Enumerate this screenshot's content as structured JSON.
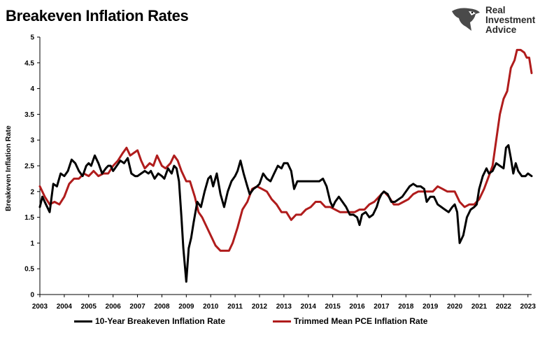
{
  "header": {
    "title": "Breakeven Inflation Rates"
  },
  "logo": {
    "line1": "Real",
    "line2": "Investment",
    "line3": "Advice",
    "icon": "eagle-icon"
  },
  "chart_data": {
    "type": "line",
    "title": "Breakeven Inflation Rates",
    "xlabel": "",
    "ylabel": "Breakeven Inflation Rate",
    "xlim": [
      2003,
      2023.15
    ],
    "ylim": [
      0,
      5
    ],
    "grid": false,
    "legend_position": "bottom",
    "x_ticks": [
      "2003",
      "2004",
      "2005",
      "2006",
      "2007",
      "2008",
      "2009",
      "2010",
      "2011",
      "2012",
      "2013",
      "2014",
      "2015",
      "2016",
      "2017",
      "2018",
      "2019",
      "2020",
      "2021",
      "2022",
      "2023"
    ],
    "y_ticks": [
      "0",
      "0.5",
      "1",
      "1.5",
      "2",
      "2.5",
      "3",
      "3.5",
      "4",
      "4.5",
      "5"
    ],
    "series": [
      {
        "name": "10-Year Breakeven Inflation Rate",
        "color": "#000000",
        "points": [
          [
            2003.0,
            1.7
          ],
          [
            2003.1,
            1.9
          ],
          [
            2003.25,
            1.75
          ],
          [
            2003.4,
            1.6
          ],
          [
            2003.55,
            2.15
          ],
          [
            2003.7,
            2.1
          ],
          [
            2003.85,
            2.35
          ],
          [
            2004.0,
            2.3
          ],
          [
            2004.15,
            2.4
          ],
          [
            2004.3,
            2.62
          ],
          [
            2004.45,
            2.55
          ],
          [
            2004.6,
            2.4
          ],
          [
            2004.75,
            2.3
          ],
          [
            2004.9,
            2.5
          ],
          [
            2005.0,
            2.55
          ],
          [
            2005.1,
            2.5
          ],
          [
            2005.25,
            2.7
          ],
          [
            2005.4,
            2.55
          ],
          [
            2005.55,
            2.35
          ],
          [
            2005.7,
            2.45
          ],
          [
            2005.8,
            2.5
          ],
          [
            2005.9,
            2.5
          ],
          [
            2006.0,
            2.4
          ],
          [
            2006.15,
            2.5
          ],
          [
            2006.3,
            2.6
          ],
          [
            2006.45,
            2.55
          ],
          [
            2006.6,
            2.65
          ],
          [
            2006.75,
            2.35
          ],
          [
            2006.9,
            2.3
          ],
          [
            2007.0,
            2.3
          ],
          [
            2007.15,
            2.35
          ],
          [
            2007.3,
            2.4
          ],
          [
            2007.45,
            2.35
          ],
          [
            2007.55,
            2.4
          ],
          [
            2007.7,
            2.25
          ],
          [
            2007.85,
            2.35
          ],
          [
            2008.0,
            2.3
          ],
          [
            2008.1,
            2.25
          ],
          [
            2008.25,
            2.45
          ],
          [
            2008.4,
            2.35
          ],
          [
            2008.5,
            2.5
          ],
          [
            2008.6,
            2.45
          ],
          [
            2008.7,
            2.2
          ],
          [
            2008.8,
            1.5
          ],
          [
            2008.88,
            0.9
          ],
          [
            2009.0,
            0.25
          ],
          [
            2009.1,
            0.9
          ],
          [
            2009.2,
            1.1
          ],
          [
            2009.3,
            1.4
          ],
          [
            2009.45,
            1.8
          ],
          [
            2009.6,
            1.7
          ],
          [
            2009.75,
            2.0
          ],
          [
            2009.9,
            2.25
          ],
          [
            2010.0,
            2.3
          ],
          [
            2010.1,
            2.1
          ],
          [
            2010.25,
            2.35
          ],
          [
            2010.4,
            1.95
          ],
          [
            2010.55,
            1.7
          ],
          [
            2010.7,
            2.0
          ],
          [
            2010.85,
            2.2
          ],
          [
            2011.0,
            2.3
          ],
          [
            2011.1,
            2.4
          ],
          [
            2011.22,
            2.6
          ],
          [
            2011.35,
            2.35
          ],
          [
            2011.5,
            2.1
          ],
          [
            2011.6,
            1.95
          ],
          [
            2011.75,
            2.05
          ],
          [
            2011.9,
            2.1
          ],
          [
            2012.0,
            2.15
          ],
          [
            2012.15,
            2.35
          ],
          [
            2012.3,
            2.25
          ],
          [
            2012.45,
            2.2
          ],
          [
            2012.6,
            2.35
          ],
          [
            2012.75,
            2.5
          ],
          [
            2012.9,
            2.45
          ],
          [
            2013.0,
            2.55
          ],
          [
            2013.15,
            2.55
          ],
          [
            2013.3,
            2.4
          ],
          [
            2013.42,
            2.05
          ],
          [
            2013.55,
            2.2
          ],
          [
            2013.7,
            2.2
          ],
          [
            2013.85,
            2.2
          ],
          [
            2014.0,
            2.2
          ],
          [
            2014.15,
            2.2
          ],
          [
            2014.3,
            2.2
          ],
          [
            2014.45,
            2.2
          ],
          [
            2014.6,
            2.25
          ],
          [
            2014.75,
            2.1
          ],
          [
            2014.9,
            1.8
          ],
          [
            2015.0,
            1.7
          ],
          [
            2015.1,
            1.8
          ],
          [
            2015.25,
            1.9
          ],
          [
            2015.4,
            1.8
          ],
          [
            2015.55,
            1.7
          ],
          [
            2015.7,
            1.55
          ],
          [
            2015.85,
            1.55
          ],
          [
            2016.0,
            1.5
          ],
          [
            2016.1,
            1.35
          ],
          [
            2016.2,
            1.55
          ],
          [
            2016.35,
            1.6
          ],
          [
            2016.5,
            1.5
          ],
          [
            2016.65,
            1.55
          ],
          [
            2016.8,
            1.7
          ],
          [
            2016.9,
            1.85
          ],
          [
            2017.0,
            1.95
          ],
          [
            2017.1,
            2.0
          ],
          [
            2017.25,
            1.95
          ],
          [
            2017.4,
            1.8
          ],
          [
            2017.55,
            1.8
          ],
          [
            2017.7,
            1.85
          ],
          [
            2017.85,
            1.9
          ],
          [
            2018.0,
            2.0
          ],
          [
            2018.15,
            2.1
          ],
          [
            2018.3,
            2.15
          ],
          [
            2018.45,
            2.1
          ],
          [
            2018.6,
            2.1
          ],
          [
            2018.75,
            2.05
          ],
          [
            2018.85,
            1.8
          ],
          [
            2019.0,
            1.9
          ],
          [
            2019.15,
            1.9
          ],
          [
            2019.3,
            1.75
          ],
          [
            2019.45,
            1.7
          ],
          [
            2019.6,
            1.65
          ],
          [
            2019.75,
            1.6
          ],
          [
            2019.9,
            1.7
          ],
          [
            2020.0,
            1.75
          ],
          [
            2020.1,
            1.6
          ],
          [
            2020.2,
            1.0
          ],
          [
            2020.35,
            1.15
          ],
          [
            2020.5,
            1.5
          ],
          [
            2020.65,
            1.65
          ],
          [
            2020.8,
            1.7
          ],
          [
            2020.9,
            1.75
          ],
          [
            2021.0,
            2.05
          ],
          [
            2021.15,
            2.3
          ],
          [
            2021.3,
            2.45
          ],
          [
            2021.4,
            2.35
          ],
          [
            2021.55,
            2.4
          ],
          [
            2021.7,
            2.55
          ],
          [
            2021.85,
            2.5
          ],
          [
            2022.0,
            2.45
          ],
          [
            2022.1,
            2.85
          ],
          [
            2022.2,
            2.9
          ],
          [
            2022.3,
            2.65
          ],
          [
            2022.4,
            2.35
          ],
          [
            2022.5,
            2.55
          ],
          [
            2022.6,
            2.4
          ],
          [
            2022.75,
            2.3
          ],
          [
            2022.9,
            2.3
          ],
          [
            2023.0,
            2.35
          ],
          [
            2023.15,
            2.3
          ]
        ]
      },
      {
        "name": "Trimmed Mean PCE Inflation Rate",
        "color": "#b01c1c",
        "points": [
          [
            2003.0,
            2.1
          ],
          [
            2003.2,
            1.9
          ],
          [
            2003.4,
            1.75
          ],
          [
            2003.6,
            1.8
          ],
          [
            2003.8,
            1.75
          ],
          [
            2004.0,
            1.9
          ],
          [
            2004.2,
            2.15
          ],
          [
            2004.4,
            2.25
          ],
          [
            2004.6,
            2.25
          ],
          [
            2004.8,
            2.35
          ],
          [
            2005.0,
            2.3
          ],
          [
            2005.2,
            2.4
          ],
          [
            2005.4,
            2.3
          ],
          [
            2005.6,
            2.35
          ],
          [
            2005.8,
            2.35
          ],
          [
            2006.0,
            2.5
          ],
          [
            2006.2,
            2.6
          ],
          [
            2006.4,
            2.75
          ],
          [
            2006.55,
            2.85
          ],
          [
            2006.7,
            2.7
          ],
          [
            2006.85,
            2.75
          ],
          [
            2007.0,
            2.8
          ],
          [
            2007.15,
            2.6
          ],
          [
            2007.3,
            2.45
          ],
          [
            2007.5,
            2.55
          ],
          [
            2007.65,
            2.5
          ],
          [
            2007.8,
            2.7
          ],
          [
            2008.0,
            2.5
          ],
          [
            2008.15,
            2.45
          ],
          [
            2008.35,
            2.55
          ],
          [
            2008.5,
            2.7
          ],
          [
            2008.65,
            2.6
          ],
          [
            2008.8,
            2.4
          ],
          [
            2009.0,
            2.2
          ],
          [
            2009.15,
            2.2
          ],
          [
            2009.35,
            1.9
          ],
          [
            2009.5,
            1.6
          ],
          [
            2009.65,
            1.5
          ],
          [
            2009.8,
            1.35
          ],
          [
            2010.0,
            1.15
          ],
          [
            2010.2,
            0.95
          ],
          [
            2010.4,
            0.85
          ],
          [
            2010.55,
            0.85
          ],
          [
            2010.75,
            0.85
          ],
          [
            2010.9,
            1.0
          ],
          [
            2011.1,
            1.3
          ],
          [
            2011.3,
            1.65
          ],
          [
            2011.5,
            1.8
          ],
          [
            2011.7,
            2.05
          ],
          [
            2011.9,
            2.1
          ],
          [
            2012.1,
            2.05
          ],
          [
            2012.3,
            2.0
          ],
          [
            2012.5,
            1.85
          ],
          [
            2012.7,
            1.75
          ],
          [
            2012.9,
            1.6
          ],
          [
            2013.1,
            1.6
          ],
          [
            2013.3,
            1.45
          ],
          [
            2013.5,
            1.55
          ],
          [
            2013.7,
            1.55
          ],
          [
            2013.9,
            1.65
          ],
          [
            2014.1,
            1.7
          ],
          [
            2014.3,
            1.8
          ],
          [
            2014.5,
            1.8
          ],
          [
            2014.7,
            1.7
          ],
          [
            2014.9,
            1.7
          ],
          [
            2015.1,
            1.65
          ],
          [
            2015.3,
            1.6
          ],
          [
            2015.5,
            1.6
          ],
          [
            2015.7,
            1.6
          ],
          [
            2015.9,
            1.6
          ],
          [
            2016.1,
            1.65
          ],
          [
            2016.3,
            1.65
          ],
          [
            2016.5,
            1.75
          ],
          [
            2016.7,
            1.8
          ],
          [
            2016.9,
            1.9
          ],
          [
            2017.1,
            2.0
          ],
          [
            2017.3,
            1.9
          ],
          [
            2017.5,
            1.75
          ],
          [
            2017.7,
            1.75
          ],
          [
            2017.9,
            1.8
          ],
          [
            2018.1,
            1.85
          ],
          [
            2018.3,
            1.95
          ],
          [
            2018.5,
            2.0
          ],
          [
            2018.7,
            2.0
          ],
          [
            2018.9,
            2.0
          ],
          [
            2019.1,
            2.0
          ],
          [
            2019.3,
            2.1
          ],
          [
            2019.5,
            2.05
          ],
          [
            2019.7,
            2.0
          ],
          [
            2019.9,
            2.0
          ],
          [
            2020.0,
            2.0
          ],
          [
            2020.2,
            1.8
          ],
          [
            2020.4,
            1.7
          ],
          [
            2020.6,
            1.75
          ],
          [
            2020.8,
            1.75
          ],
          [
            2021.0,
            1.85
          ],
          [
            2021.2,
            2.05
          ],
          [
            2021.4,
            2.3
          ],
          [
            2021.55,
            2.5
          ],
          [
            2021.7,
            3.0
          ],
          [
            2021.85,
            3.5
          ],
          [
            2022.0,
            3.8
          ],
          [
            2022.15,
            3.95
          ],
          [
            2022.3,
            4.4
          ],
          [
            2022.45,
            4.55
          ],
          [
            2022.55,
            4.75
          ],
          [
            2022.7,
            4.75
          ],
          [
            2022.85,
            4.7
          ],
          [
            2022.95,
            4.6
          ],
          [
            2023.05,
            4.6
          ],
          [
            2023.15,
            4.3
          ]
        ]
      }
    ]
  }
}
